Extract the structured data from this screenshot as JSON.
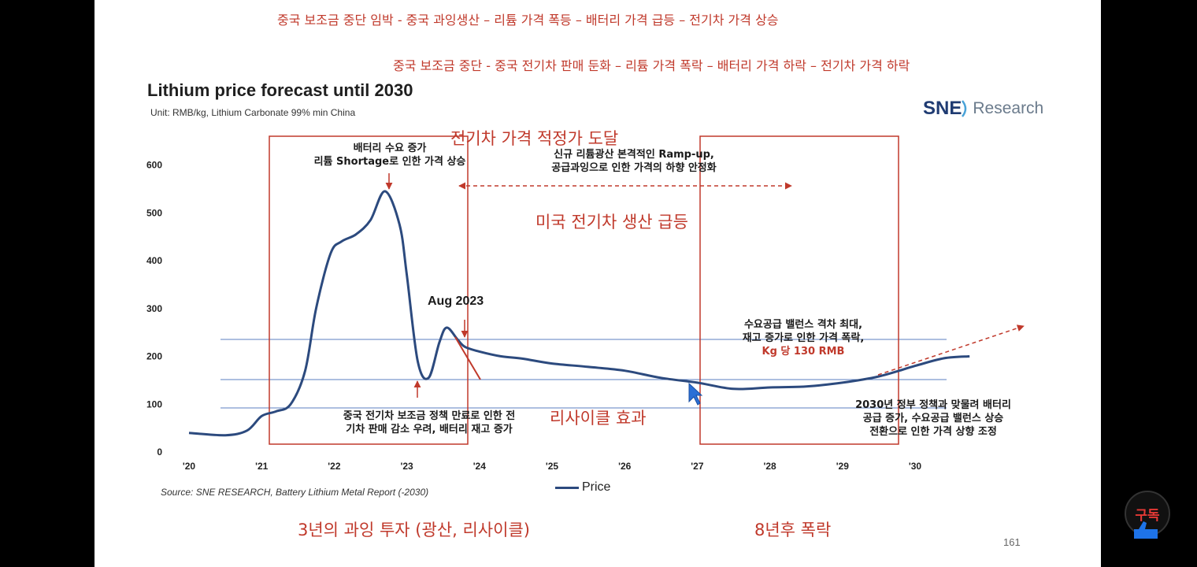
{
  "annotations": {
    "top_line1": "중국 보조금 중단 임박 - 중국 과잉생산 – 리튬 가격 폭등 – 배터리 가격 급등 – 전기차 가격 상승",
    "top_line2": "중국 보조금 중단 - 중국 전기차 판매 둔화 – 리튬 가격 폭락 – 배터리 가격 하락 – 전기차 가격 하락",
    "ev_price_reach": "전기차 가격 적정가 도달",
    "us_ev_surge": "미국 전기차 생산 급등",
    "recycle_effect": "리사이클 효과",
    "overinvest_3yr": "3년의 과잉 투자 (광산, 리사이클)",
    "crash_8yr": "8년후 폭락"
  },
  "chart_data": {
    "type": "line",
    "title": "Lithium price forecast until 2030",
    "unit_note": "Unit: RMB/kg, Lithium Carbonate 99% min China",
    "source": "Source: SNE RESEARCH, Battery Lithium Metal Report (-2030)",
    "xlabel": "",
    "ylabel": "",
    "x_ticks": [
      "'20",
      "'21",
      "'22",
      "'23",
      "'24",
      "'25",
      "'26",
      "'27",
      "'28",
      "'29",
      "'30"
    ],
    "y_ticks": [
      "0",
      "100",
      "200",
      "300",
      "400",
      "500",
      "600"
    ],
    "ylim": [
      0,
      600
    ],
    "xlim": [
      2020,
      2031
    ],
    "grid": false,
    "legend_position": "bottom",
    "series": [
      {
        "name": "Price",
        "color": "#2c4a7e",
        "points": [
          [
            2020.0,
            40
          ],
          [
            2020.5,
            35
          ],
          [
            2020.8,
            45
          ],
          [
            2021.0,
            75
          ],
          [
            2021.2,
            85
          ],
          [
            2021.4,
            100
          ],
          [
            2021.6,
            170
          ],
          [
            2021.75,
            300
          ],
          [
            2021.95,
            415
          ],
          [
            2022.1,
            440
          ],
          [
            2022.3,
            455
          ],
          [
            2022.5,
            485
          ],
          [
            2022.7,
            545
          ],
          [
            2022.9,
            475
          ],
          [
            2023.0,
            370
          ],
          [
            2023.15,
            190
          ],
          [
            2023.3,
            155
          ],
          [
            2023.45,
            230
          ],
          [
            2023.55,
            260
          ],
          [
            2023.7,
            235
          ],
          [
            2023.8,
            220
          ],
          [
            2024.0,
            210
          ],
          [
            2024.3,
            200
          ],
          [
            2024.6,
            195
          ],
          [
            2025.0,
            185
          ],
          [
            2025.5,
            178
          ],
          [
            2026.0,
            170
          ],
          [
            2026.5,
            155
          ],
          [
            2027.0,
            145
          ],
          [
            2027.5,
            132
          ],
          [
            2028.0,
            135
          ],
          [
            2028.5,
            137
          ],
          [
            2029.0,
            145
          ],
          [
            2029.5,
            158
          ],
          [
            2030.0,
            180
          ],
          [
            2030.4,
            196
          ],
          [
            2030.75,
            200
          ]
        ]
      }
    ],
    "text_annotations": {
      "peak_note": [
        "배터리 수요 증가",
        "리튬 Shortage로 인한 가격 상승"
      ],
      "mid_note": [
        "신규 리튬광산 본격적인 Ramp-up,",
        "공급과잉으로 인한 가격의 하향 안정화"
      ],
      "trough_note": [
        "중국 전기차 보조금 정책 만료로 인한 전",
        "기차 판매 감소 우려, 배터리 재고 증가"
      ],
      "aug_label": "Aug 2023",
      "balance_note": [
        "수요공급 밸런스 격차 최대,",
        "재고 증가로 인한 가격 폭락,"
      ],
      "kg_price": "Kg 당 130 RMB",
      "policy_note": [
        "2030년 정부 정책과 맞물려 배터리",
        "공급 증가, 수요공급 밸런스 상승",
        "전환으로 인한 가격 상향 조정"
      ]
    }
  },
  "logo": {
    "brand": "SNE",
    "word": "Research"
  },
  "legend_label": "Price",
  "page_number": "161",
  "badge": {
    "text": "구독"
  },
  "colors": {
    "annotation_red": "#c0392b",
    "line_blue": "#2c4a7e",
    "reference_line": "#5b7fc1"
  }
}
